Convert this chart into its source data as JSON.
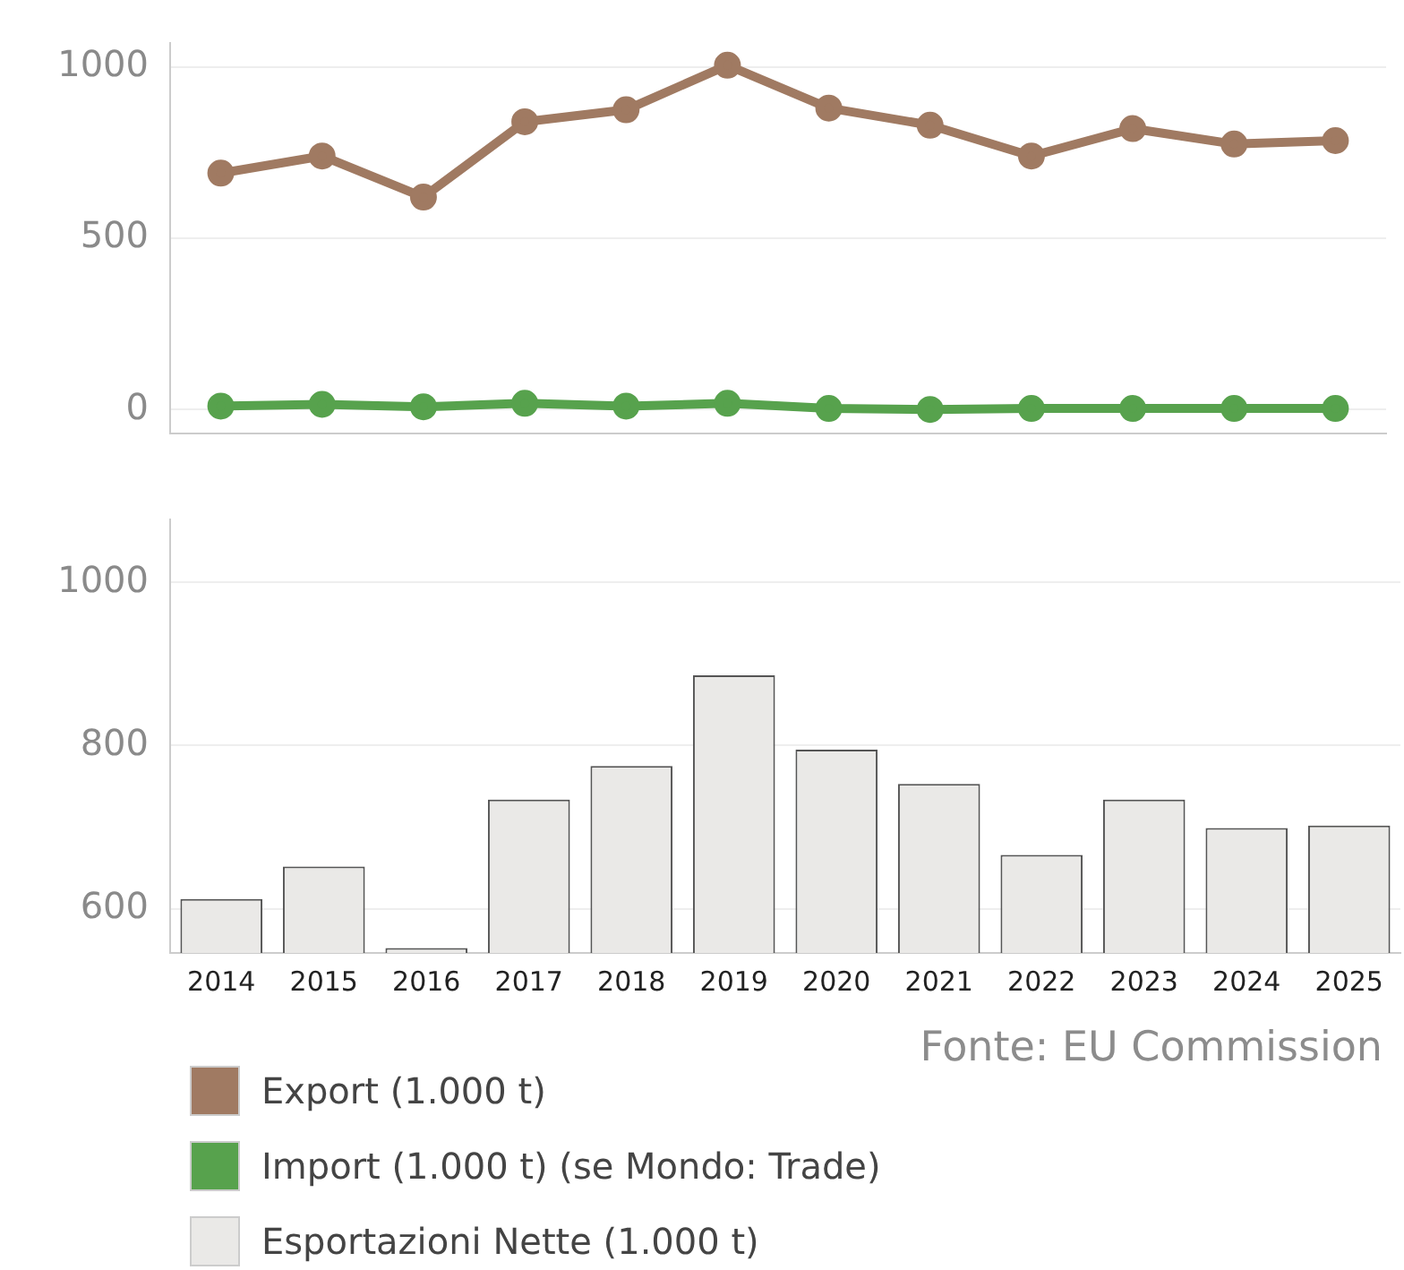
{
  "chart_data": [
    {
      "type": "line",
      "categories": [
        "2014",
        "2015",
        "2016",
        "2017",
        "2018",
        "2019",
        "2020",
        "2021",
        "2022",
        "2023",
        "2024",
        "2025"
      ],
      "series": [
        {
          "name": "Export (1.000 t)",
          "color": "#a07a62",
          "values": [
            690,
            740,
            620,
            840,
            875,
            1005,
            880,
            830,
            740,
            820,
            775,
            785
          ]
        },
        {
          "name": "Import (1.000 t) (se Mondo: Trade)",
          "color": "#57a24d",
          "values": [
            10,
            15,
            8,
            18,
            10,
            18,
            3,
            0,
            3,
            3,
            3,
            3
          ]
        }
      ],
      "ylim": [
        -70,
        1070
      ],
      "yticks": [
        0,
        500,
        1000
      ],
      "grid": "y",
      "tick_labels": "y",
      "marker": "circle",
      "legend": "bottom"
    },
    {
      "type": "bar",
      "categories": [
        "2014",
        "2015",
        "2016",
        "2017",
        "2018",
        "2019",
        "2020",
        "2021",
        "2022",
        "2023",
        "2024",
        "2025"
      ],
      "series": [
        {
          "name": "Esportazioni Nette (1.000 t)",
          "color": "#eae9e7",
          "values": [
            612,
            652,
            552,
            734,
            775,
            886,
            795,
            753,
            666,
            734,
            699,
            702
          ]
        }
      ],
      "ylim": [
        546,
        1077
      ],
      "yticks": [
        600,
        800,
        1000
      ],
      "grid": "y",
      "legend": "bottom",
      "annotations": [
        "Fonte: EU Commission"
      ]
    }
  ]
}
